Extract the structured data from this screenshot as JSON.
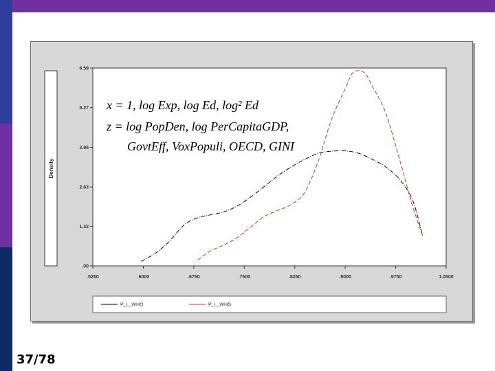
{
  "slide": {
    "number": "37/78"
  },
  "annotation": {
    "line1": "x = 1, log Exp, log Ed, log² Ed",
    "line2": "z = log PopDen, log PerCapitaGDP,",
    "line3": "GovtEff, VoxPopuli, OECD, GINI"
  },
  "chart_data": {
    "type": "line",
    "title": "",
    "xlabel": "",
    "ylabel": "Density",
    "xlim": [
      0.525,
      1.05
    ],
    "ylim": [
      0,
      6.59
    ],
    "x_ticks": [
      0.525,
      0.6,
      0.675,
      0.75,
      0.825,
      0.9,
      0.975,
      1.05
    ],
    "x_tick_labels": [
      ".5250",
      ".6000",
      ".6750",
      ".7500",
      ".8250",
      ".9000",
      ".9750",
      "1.0500"
    ],
    "y_ticks": [
      0,
      1.32,
      2.63,
      3.95,
      5.27,
      6.59
    ],
    "y_tick_labels": [
      ".00",
      "1.32",
      "2.63",
      "3.95",
      "5.27",
      "6.59"
    ],
    "grid": false,
    "legend_position": "bottom",
    "series": [
      {
        "name": "P_L_WHO",
        "color": "#000000",
        "dash": "dashdot",
        "x": [
          0.597,
          0.62,
          0.64,
          0.66,
          0.68,
          0.7,
          0.72,
          0.74,
          0.76,
          0.78,
          0.8,
          0.82,
          0.84,
          0.86,
          0.88,
          0.9,
          0.92,
          0.94,
          0.96,
          0.98,
          1.0,
          1.015
        ],
        "y": [
          0.15,
          0.45,
          0.85,
          1.35,
          1.6,
          1.7,
          1.8,
          2.0,
          2.3,
          2.65,
          3.0,
          3.3,
          3.55,
          3.75,
          3.82,
          3.83,
          3.75,
          3.55,
          3.3,
          2.9,
          2.2,
          1.0
        ]
      },
      {
        "name": "P_L_WHG",
        "color": "#c0392b",
        "dash": "dashed",
        "x": [
          0.681,
          0.7,
          0.72,
          0.74,
          0.76,
          0.78,
          0.8,
          0.82,
          0.84,
          0.86,
          0.88,
          0.9,
          0.91,
          0.92,
          0.93,
          0.94,
          0.96,
          0.98,
          1.0,
          1.015
        ],
        "y": [
          0.2,
          0.5,
          0.7,
          0.95,
          1.3,
          1.65,
          1.85,
          2.05,
          2.45,
          3.5,
          4.9,
          5.9,
          6.4,
          6.5,
          6.4,
          6.0,
          5.1,
          3.6,
          2.0,
          1.0
        ]
      }
    ]
  }
}
